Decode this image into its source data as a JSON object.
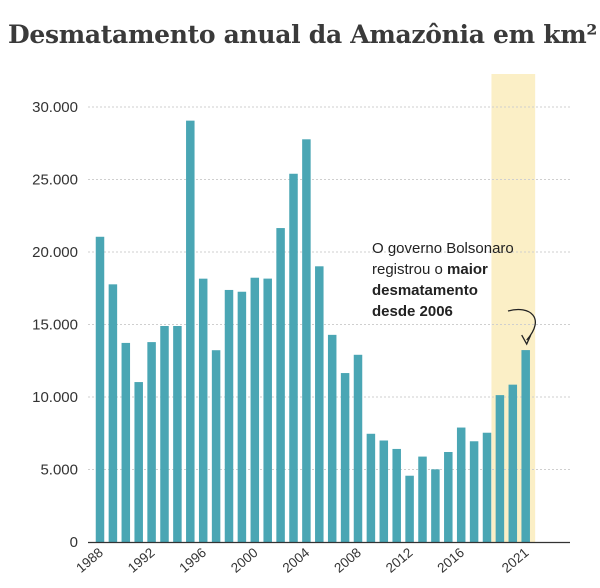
{
  "chart_data": {
    "type": "bar",
    "title": "Desmatamento anual da Amazônia em km²",
    "x": [
      1988,
      1989,
      1990,
      1991,
      1992,
      1993,
      1994,
      1995,
      1996,
      1997,
      1998,
      1999,
      2000,
      2001,
      2002,
      2003,
      2004,
      2005,
      2006,
      2007,
      2008,
      2009,
      2010,
      2011,
      2012,
      2013,
      2014,
      2015,
      2016,
      2017,
      2018,
      2019,
      2020,
      2021
    ],
    "values": [
      21050,
      17770,
      13730,
      11030,
      13786,
      14896,
      14896,
      29059,
      18161,
      13227,
      17383,
      17259,
      18226,
      18165,
      21651,
      25396,
      27772,
      19014,
      14286,
      11651,
      12911,
      7464,
      7000,
      6418,
      4571,
      5891,
      5012,
      6207,
      7893,
      6947,
      7536,
      10129,
      10851,
      13235
    ],
    "x_tick_labels": [
      "1988",
      "1992",
      "1996",
      "2000",
      "2004",
      "2008",
      "2012",
      "2016",
      "2021"
    ],
    "x_tick_years": [
      1988,
      1992,
      1996,
      2000,
      2004,
      2008,
      2012,
      2016,
      2021
    ],
    "y_ticks": [
      0,
      5000,
      10000,
      15000,
      20000,
      25000,
      30000
    ],
    "y_tick_labels": [
      "0",
      "5.000",
      "10.000",
      "15.000",
      "20.000",
      "25.000",
      "30.000"
    ],
    "ylim": [
      0,
      30000
    ],
    "grid": true,
    "highlight_years": [
      2019,
      2021
    ],
    "annotation": {
      "line1": "O governo Bolsonaro",
      "line2_pre": "registrou o ",
      "line2_bold": "maior",
      "line3_bold": "desmatamento",
      "line4_bold": "desde 2006"
    },
    "colors": {
      "bar": "#4aa6b4",
      "highlight": "#fbefc6",
      "grid": "#cfcfcf",
      "axis": "#333333"
    }
  }
}
